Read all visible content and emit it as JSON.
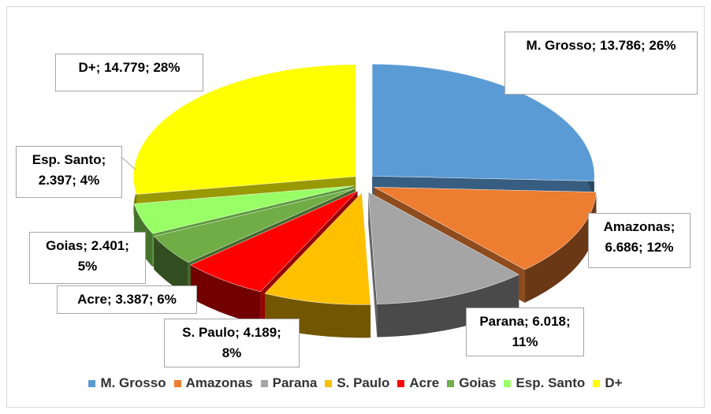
{
  "chart_data": {
    "type": "pie3d",
    "categories": [
      "M. Grosso",
      "Amazonas",
      "Parana",
      "S. Paulo",
      "Acre",
      "Goias",
      "Esp. Santo",
      "D+"
    ],
    "values": [
      13786,
      6686,
      6018,
      4189,
      3387,
      2401,
      2397,
      14779
    ],
    "value_labels": [
      "M. Grosso; 13.786; 26%",
      "Amazonas; 6.686; 12%",
      "Parana; 6.018; 11%",
      "S. Paulo; 4.189; 8%",
      "Acre; 3.387; 6%",
      "Goias; 2.401; 5%",
      "Esp. Santo; 2.397; 4%",
      "D+; 14.779; 28%"
    ],
    "colors": [
      "#5b9bd5",
      "#ed7d31",
      "#a5a5a5",
      "#ffc000",
      "#ff0000",
      "#70ad47",
      "#99ff66",
      "#ffff00"
    ],
    "legend": "bottom"
  }
}
